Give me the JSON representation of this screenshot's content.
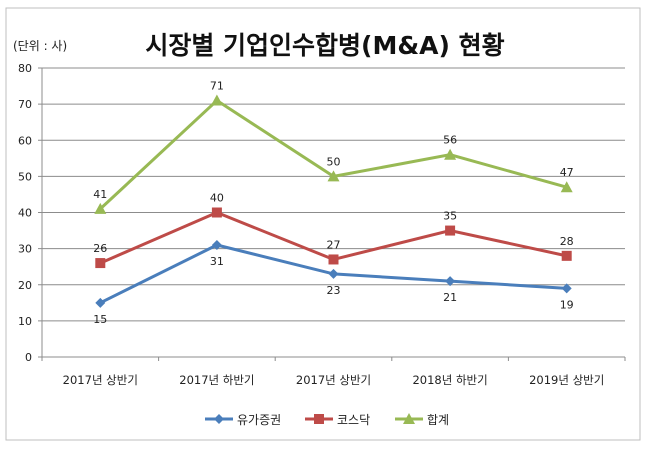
{
  "chart_data": {
    "type": "line",
    "title": "시장별 기업인수합병(M&A) 현황",
    "unit_label": "(단위 : 사)",
    "categories": [
      "2017년 상반기",
      "2017년 하반기",
      "2017년 상반기",
      "2018년 하반기",
      "2019년 상반기"
    ],
    "ylim": [
      0,
      80
    ],
    "yticks": [
      0,
      10,
      20,
      30,
      40,
      50,
      60,
      70,
      80
    ],
    "grid": true,
    "legend_position": "bottom",
    "series": [
      {
        "name": "유가증권",
        "values": [
          15,
          31,
          23,
          21,
          19
        ],
        "color": "#4a7ebb",
        "marker": "diamond",
        "label_pos": "below"
      },
      {
        "name": "코스닥",
        "values": [
          26,
          40,
          27,
          35,
          28
        ],
        "color": "#be4b48",
        "marker": "square",
        "label_pos": "above"
      },
      {
        "name": "합계",
        "values": [
          41,
          71,
          50,
          56,
          47
        ],
        "color": "#98b954",
        "marker": "triangle",
        "label_pos": "above"
      }
    ]
  }
}
